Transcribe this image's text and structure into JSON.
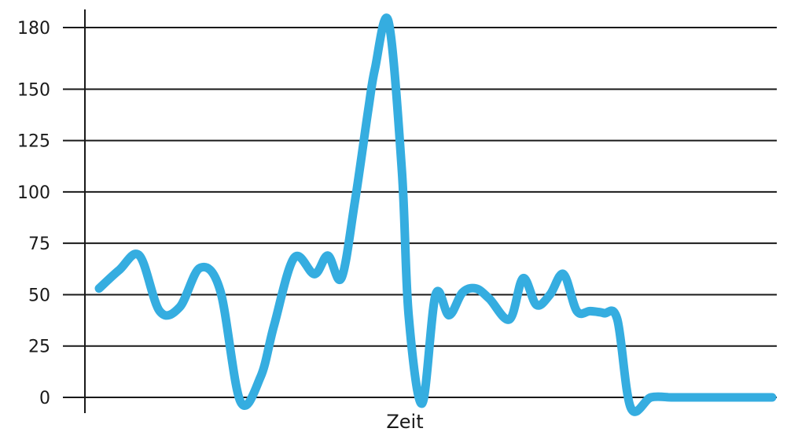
{
  "chart_data": {
    "type": "line",
    "title": "",
    "xlabel": "Zeit",
    "ylabel": "",
    "ylim": [
      0,
      180
    ],
    "y_ticks": [
      0,
      25,
      50,
      75,
      100,
      125,
      150,
      180
    ],
    "y_tick_labels": [
      "0",
      "25",
      "50",
      "75",
      "100",
      "125",
      "150",
      "180"
    ],
    "grid": "horizontal",
    "line_color": "#35ade0",
    "axis_color": "#1a1a1a",
    "series": [
      {
        "x": [
          0,
          3,
          6,
          9,
          12,
          15,
          18,
          21,
          24,
          26,
          29,
          32,
          34,
          36,
          38,
          40,
          41,
          43,
          45,
          46,
          48,
          50,
          52,
          54,
          56,
          58,
          61,
          63,
          65,
          67,
          69,
          71,
          73,
          75,
          77,
          79,
          82,
          85,
          87,
          89,
          91,
          93,
          95,
          96,
          97.5,
          100
        ],
        "y": [
          53,
          62,
          69,
          42,
          44,
          63,
          52,
          -2,
          10,
          35,
          68,
          60,
          69,
          58,
          95,
          140,
          160,
          183,
          110,
          40,
          -3,
          50,
          40,
          51,
          53,
          48,
          38,
          58,
          45,
          50,
          60,
          42,
          42,
          41,
          38,
          -5,
          0,
          0,
          0,
          0,
          0,
          0,
          0,
          0,
          0,
          0
        ]
      }
    ]
  }
}
